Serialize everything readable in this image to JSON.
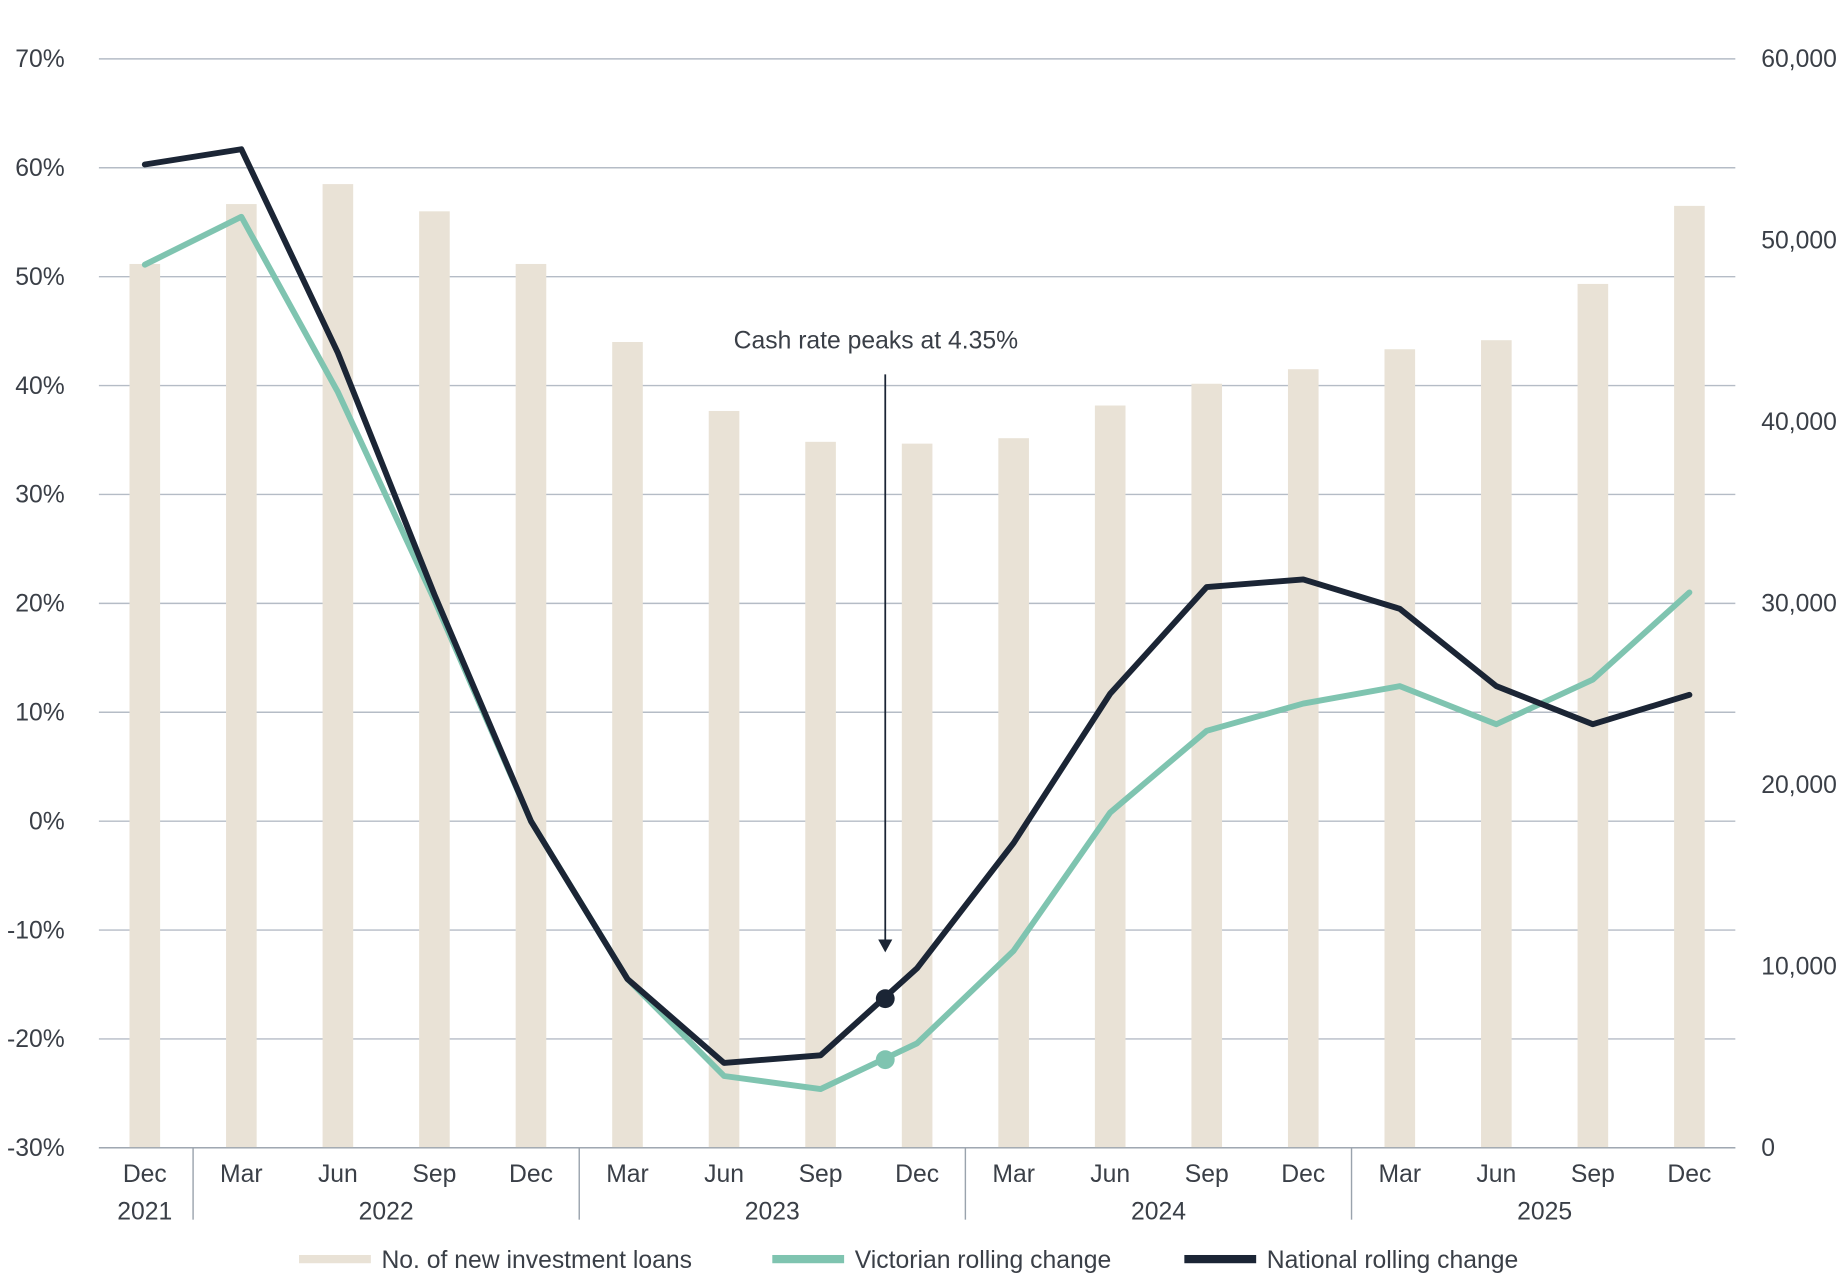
{
  "chart_data": {
    "type": "bar+line",
    "title": "",
    "categories": [
      "Dec",
      "Mar",
      "Jun",
      "Sep",
      "Dec",
      "Mar",
      "Jun",
      "Sep",
      "Dec",
      "Mar",
      "Jun",
      "Sep",
      "Dec",
      "Mar",
      "Jun",
      "Sep",
      "Dec"
    ],
    "years": [
      {
        "label": "2021",
        "from": 0,
        "to": 0
      },
      {
        "label": "2022",
        "from": 1,
        "to": 4
      },
      {
        "label": "2023",
        "from": 5,
        "to": 8
      },
      {
        "label": "2024",
        "from": 9,
        "to": 12
      },
      {
        "label": "2025",
        "from": 13,
        "to": 16
      }
    ],
    "left_axis": {
      "ticks": [
        "70%",
        "60%",
        "50%",
        "40%",
        "30%",
        "20%",
        "10%",
        "0%",
        "-10%",
        "-20%",
        "-30%"
      ],
      "range": [
        -30,
        70
      ]
    },
    "right_axis": {
      "ticks": [
        "60,000",
        "50,000",
        "40,000",
        "30,000",
        "20,000",
        "10,000",
        "0"
      ],
      "range": [
        0,
        60000
      ]
    },
    "grid": true,
    "series": [
      {
        "name": "No. of new investment loans",
        "type": "bar",
        "axis": "right",
        "color": "#e9e2d6",
        "values": [
          48700,
          52000,
          53100,
          51600,
          48700,
          44400,
          40600,
          38900,
          38800,
          39100,
          40900,
          42100,
          42900,
          44000,
          44500,
          47600,
          51900
        ]
      },
      {
        "name": "Victorian rolling change",
        "type": "line",
        "axis": "left",
        "color": "#7fc4b0",
        "values": [
          51.1,
          55.5,
          39.4,
          20.3,
          0,
          -14.5,
          -23.4,
          -24.6,
          -20.4,
          -11.9,
          0.8,
          8.3,
          10.8,
          12.4,
          8.9,
          13.0,
          21.0
        ]
      },
      {
        "name": "National rolling change",
        "type": "line",
        "axis": "left",
        "color": "#1b2535",
        "values": [
          60.3,
          61.7,
          43.0,
          20.8,
          0,
          -14.5,
          -22.2,
          -21.5,
          -13.5,
          -2.0,
          11.7,
          21.5,
          22.2,
          19.5,
          12.4,
          8.9,
          11.6
        ]
      }
    ],
    "annotation": {
      "text": "Cash rate peaks at 4.35%",
      "position_index": 7.67,
      "national_value": -16.3,
      "victorian_value": -21.9
    },
    "legend_position": "bottom"
  }
}
